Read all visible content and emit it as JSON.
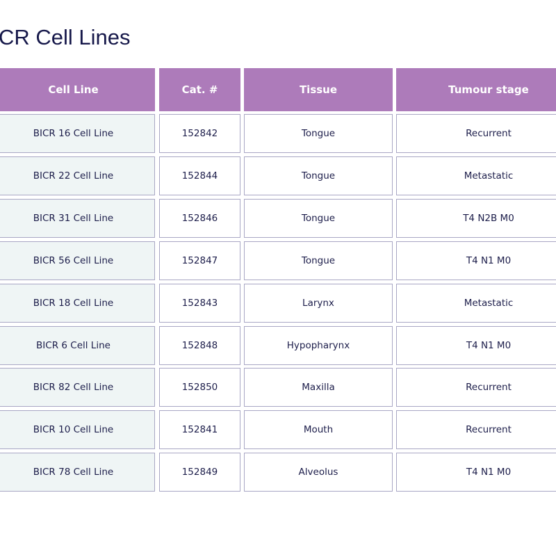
{
  "title": "CR Cell Lines",
  "table": {
    "header": [
      "Cell Line",
      "Cat. #",
      "Tissue",
      "Tumour stage"
    ],
    "rows": [
      [
        "BICR 16 Cell Line",
        "152842",
        "Tongue",
        "Recurrent"
      ],
      [
        "BICR 22 Cell Line",
        "152844",
        "Tongue",
        "Metastatic"
      ],
      [
        "BICR 31 Cell Line",
        "152846",
        "Tongue",
        "T4 N2B M0"
      ],
      [
        "BICR 56 Cell Line",
        "152847",
        "Tongue",
        "T4 N1 M0"
      ],
      [
        "BICR 18 Cell Line",
        "152843",
        "Larynx",
        "Metastatic"
      ],
      [
        "BICR 6 Cell Line",
        "152848",
        "Hypopharynx",
        "T4 N1 M0"
      ],
      [
        "BICR 82 Cell Line",
        "152850",
        "Maxilla",
        "Recurrent"
      ],
      [
        "BICR 10 Cell Line",
        "152841",
        "Mouth",
        "Recurrent"
      ],
      [
        "BICR 78 Cell Line",
        "152849",
        "Alveolus",
        "T4 N1 M0"
      ]
    ]
  }
}
